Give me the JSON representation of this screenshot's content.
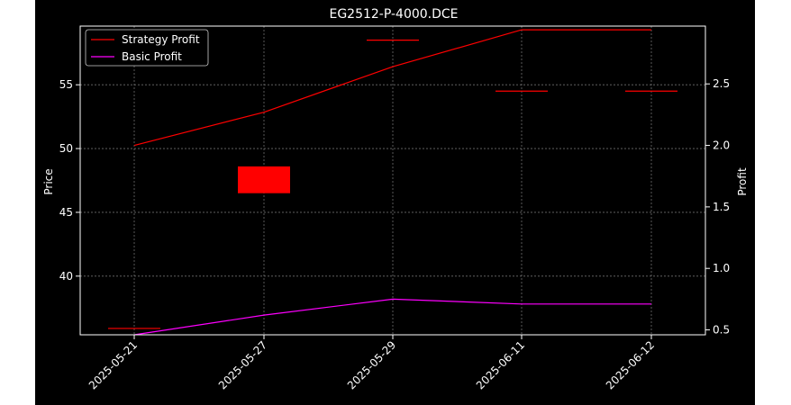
{
  "chart_data": {
    "type": "line",
    "title": "EG2512-P-4000.DCE",
    "xlabel": "",
    "ylabel_left": "Price",
    "ylabel_right": "Profit",
    "categories": [
      "2025-05-21",
      "2025-05-27",
      "2025-05-29",
      "2025-06-11",
      "2025-06-12"
    ],
    "price_axis": {
      "ticks": [
        40,
        45,
        50,
        55
      ],
      "ylim": [
        35.4,
        59.6
      ]
    },
    "profit_axis": {
      "ticks": [
        "0.5",
        "1.0",
        "1.5",
        "2.0",
        "2.5"
      ],
      "ylim": [
        0.46,
        2.97
      ]
    },
    "candles": [
      {
        "date": "2025-05-21",
        "open": 35.9,
        "close": 35.9
      },
      {
        "date": "2025-05-27",
        "open": 48.6,
        "close": 46.5
      },
      {
        "date": "2025-05-29",
        "open": 58.5,
        "close": 58.5
      },
      {
        "date": "2025-06-11",
        "open": 54.5,
        "close": 54.5
      },
      {
        "date": "2025-06-12",
        "open": 54.5,
        "close": 54.5
      }
    ],
    "series": [
      {
        "name": "Strategy Profit",
        "color": "#ff0000",
        "values": [
          2.0,
          2.27,
          2.64,
          2.94,
          2.94
        ]
      },
      {
        "name": "Basic Profit",
        "color": "#ff00ff",
        "values": [
          0.46,
          0.62,
          0.75,
          0.71,
          0.71
        ]
      }
    ],
    "grid": true,
    "legend_position": "top-left",
    "candle_color": "#ff0000"
  }
}
